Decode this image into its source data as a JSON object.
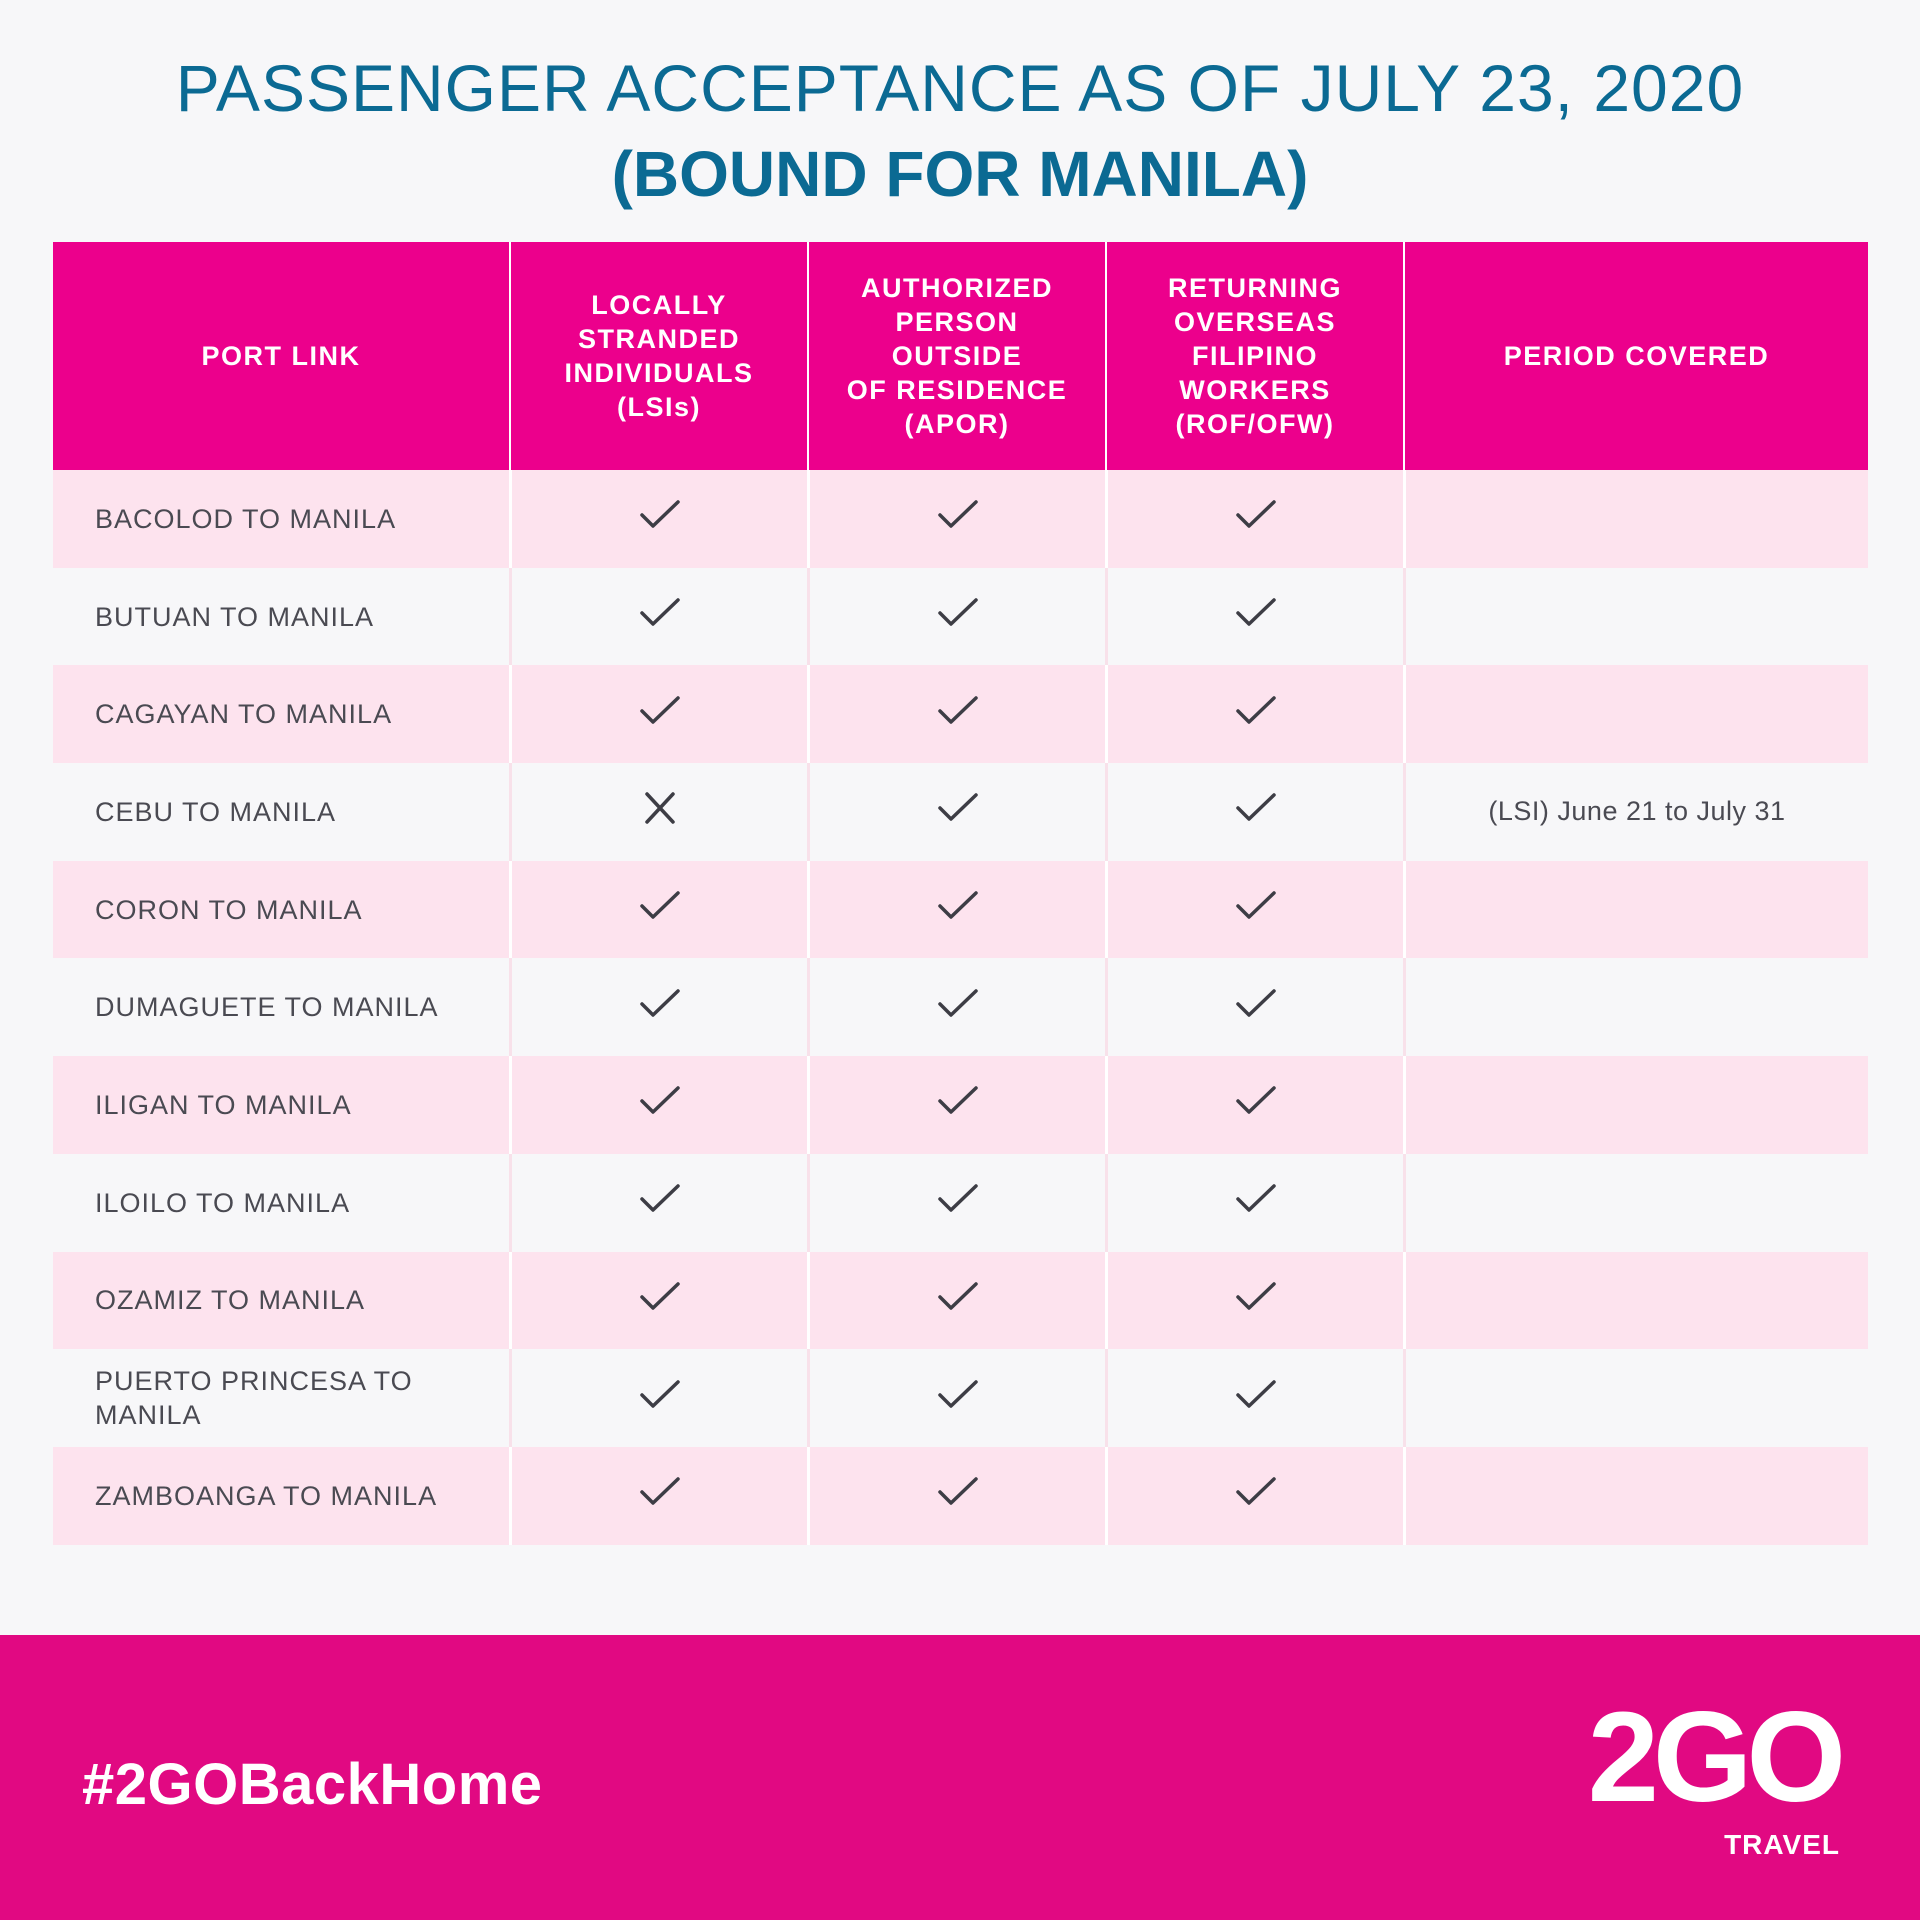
{
  "title": {
    "line1": "PASSENGER ACCEPTANCE AS OF JULY 23, 2020",
    "line2": "(BOUND FOR MANILA)"
  },
  "table": {
    "headers": [
      "PORT LINK",
      "LOCALLY\nSTRANDED\nINDIVIDUALS\n(LSIs)",
      "AUTHORIZED\nPERSON\nOUTSIDE\nOF RESIDENCE\n(APOR)",
      "RETURNING\nOVERSEAS\nFILIPINO\nWORKERS\n(ROF/OFW)",
      "PERIOD COVERED"
    ],
    "rows": [
      {
        "port": "BACOLOD TO MANILA",
        "lsi": "check",
        "apor": "check",
        "rof": "check",
        "period": ""
      },
      {
        "port": "BUTUAN TO MANILA",
        "lsi": "check",
        "apor": "check",
        "rof": "check",
        "period": ""
      },
      {
        "port": "CAGAYAN TO MANILA",
        "lsi": "check",
        "apor": "check",
        "rof": "check",
        "period": ""
      },
      {
        "port": "CEBU TO MANILA",
        "lsi": "cross",
        "apor": "check",
        "rof": "check",
        "period": "(LSI) June 21 to July 31"
      },
      {
        "port": "CORON TO MANILA",
        "lsi": "check",
        "apor": "check",
        "rof": "check",
        "period": ""
      },
      {
        "port": "DUMAGUETE TO MANILA",
        "lsi": "check",
        "apor": "check",
        "rof": "check",
        "period": ""
      },
      {
        "port": "ILIGAN TO MANILA",
        "lsi": "check",
        "apor": "check",
        "rof": "check",
        "period": ""
      },
      {
        "port": "ILOILO  TO  MANILA",
        "lsi": "check",
        "apor": "check",
        "rof": "check",
        "period": ""
      },
      {
        "port": "OZAMIZ TO MANILA",
        "lsi": "check",
        "apor": "check",
        "rof": "check",
        "period": ""
      },
      {
        "port": "PUERTO PRINCESA TO MANILA",
        "lsi": "check",
        "apor": "check",
        "rof": "check",
        "period": ""
      },
      {
        "port": "ZAMBOANGA TO MANILA",
        "lsi": "check",
        "apor": "check",
        "rof": "check",
        "period": ""
      }
    ]
  },
  "footer": {
    "hashtag": "#2GOBackHome",
    "logo_text": "2GO",
    "logo_sub": "TRAVEL"
  },
  "colors": {
    "title": "#0b6a93",
    "header_bg": "#ec008c",
    "row_pink": "#fde3ee",
    "footer_bg": "#e10982"
  },
  "icons": {
    "check": "check-icon",
    "cross": "cross-icon"
  }
}
